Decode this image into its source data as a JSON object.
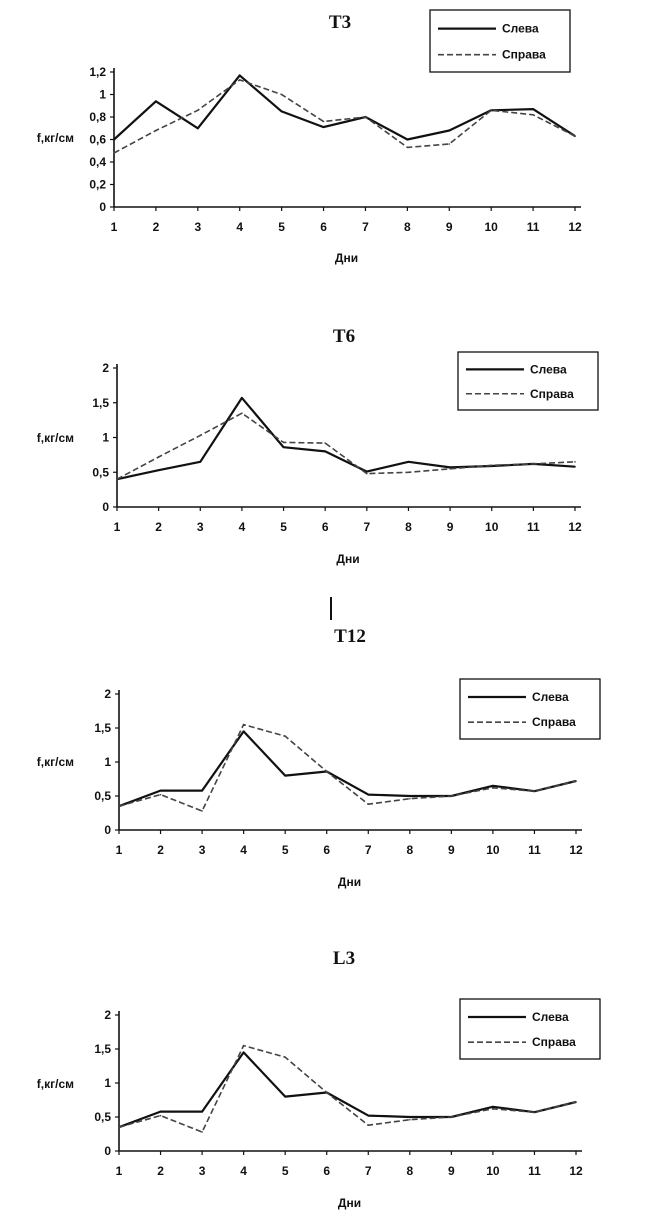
{
  "chart_data": [
    {
      "type": "line",
      "title": "T3",
      "xlabel": "Дни",
      "ylabel": "f,кг/см",
      "x": [
        1,
        2,
        3,
        4,
        5,
        6,
        7,
        8,
        9,
        10,
        11,
        12
      ],
      "x_ticks": [
        "1",
        "2",
        "3",
        "4",
        "5",
        "6",
        "7",
        "8",
        "9",
        "10",
        "11",
        "12"
      ],
      "y_ticks": [
        "0",
        "0,2",
        "0,4",
        "0,6",
        "0,8",
        "1",
        "1,2"
      ],
      "y_tick_values": [
        0,
        0.2,
        0.4,
        0.6,
        0.8,
        1.0,
        1.2
      ],
      "ylim": [
        0,
        1.2
      ],
      "grid": false,
      "legend_position": "top-right",
      "series": [
        {
          "name": "Слева",
          "style": "solid",
          "color": "#111111",
          "values": [
            0.6,
            0.94,
            0.7,
            1.17,
            0.85,
            0.71,
            0.8,
            0.6,
            0.68,
            0.86,
            0.87,
            0.63
          ]
        },
        {
          "name": "Справа",
          "style": "dashed",
          "color": "#444444",
          "values": [
            0.48,
            0.68,
            0.86,
            1.13,
            1.0,
            0.76,
            0.8,
            0.53,
            0.56,
            0.86,
            0.82,
            0.63
          ]
        }
      ]
    },
    {
      "type": "line",
      "title": "T6",
      "xlabel": "Дни",
      "ylabel": "f,кг/см",
      "x": [
        1,
        2,
        3,
        4,
        5,
        6,
        7,
        8,
        9,
        10,
        11,
        12
      ],
      "x_ticks": [
        "1",
        "2",
        "3",
        "4",
        "5",
        "6",
        "7",
        "8",
        "9",
        "10",
        "11",
        "12"
      ],
      "y_ticks": [
        "0",
        "0,5",
        "1",
        "1,5",
        "2"
      ],
      "y_tick_values": [
        0,
        0.5,
        1.0,
        1.5,
        2.0
      ],
      "ylim": [
        0,
        2
      ],
      "grid": false,
      "legend_position": "top-right",
      "series": [
        {
          "name": "Слева",
          "style": "solid",
          "color": "#111111",
          "values": [
            0.4,
            0.53,
            0.65,
            1.57,
            0.86,
            0.8,
            0.51,
            0.65,
            0.57,
            0.59,
            0.62,
            0.58
          ]
        },
        {
          "name": "Справа",
          "style": "dashed",
          "color": "#444444",
          "values": [
            0.4,
            0.72,
            1.03,
            1.35,
            0.93,
            0.92,
            0.48,
            0.5,
            0.55,
            0.6,
            0.62,
            0.65
          ]
        }
      ]
    },
    {
      "type": "line",
      "title": "T12",
      "xlabel": "Дни",
      "ylabel": "f,кг/см",
      "x": [
        1,
        2,
        3,
        4,
        5,
        6,
        7,
        8,
        9,
        10,
        11,
        12
      ],
      "x_ticks": [
        "1",
        "2",
        "3",
        "4",
        "5",
        "6",
        "7",
        "8",
        "9",
        "10",
        "11",
        "12"
      ],
      "y_ticks": [
        "0",
        "0,5",
        "1",
        "1,5",
        "2"
      ],
      "y_tick_values": [
        0,
        0.5,
        1.0,
        1.5,
        2.0
      ],
      "ylim": [
        0,
        2
      ],
      "grid": false,
      "legend_position": "top-right",
      "series": [
        {
          "name": "Слева",
          "style": "solid",
          "color": "#111111",
          "values": [
            0.35,
            0.58,
            0.58,
            1.45,
            0.8,
            0.86,
            0.52,
            0.5,
            0.5,
            0.65,
            0.57,
            0.72
          ]
        },
        {
          "name": "Справа",
          "style": "dashed",
          "color": "#444444",
          "values": [
            0.35,
            0.52,
            0.28,
            1.55,
            1.38,
            0.86,
            0.38,
            0.46,
            0.5,
            0.62,
            0.57,
            0.72
          ]
        }
      ]
    },
    {
      "type": "line",
      "title": "L3",
      "xlabel": "Дни",
      "ylabel": "f,кг/см",
      "x": [
        1,
        2,
        3,
        4,
        5,
        6,
        7,
        8,
        9,
        10,
        11,
        12
      ],
      "x_ticks": [
        "1",
        "2",
        "3",
        "4",
        "5",
        "6",
        "7",
        "8",
        "9",
        "10",
        "11",
        "12"
      ],
      "y_ticks": [
        "0",
        "0,5",
        "1",
        "1,5",
        "2"
      ],
      "y_tick_values": [
        0,
        0.5,
        1.0,
        1.5,
        2.0
      ],
      "ylim": [
        0,
        2
      ],
      "grid": false,
      "legend_position": "top-right",
      "series": [
        {
          "name": "Слева",
          "style": "solid",
          "color": "#111111",
          "values": [
            0.35,
            0.58,
            0.58,
            1.45,
            0.8,
            0.86,
            0.52,
            0.5,
            0.5,
            0.65,
            0.57,
            0.72
          ]
        },
        {
          "name": "Справа",
          "style": "dashed",
          "color": "#444444",
          "values": [
            0.35,
            0.52,
            0.28,
            1.55,
            1.38,
            0.86,
            0.38,
            0.46,
            0.5,
            0.62,
            0.57,
            0.72
          ]
        }
      ]
    }
  ]
}
